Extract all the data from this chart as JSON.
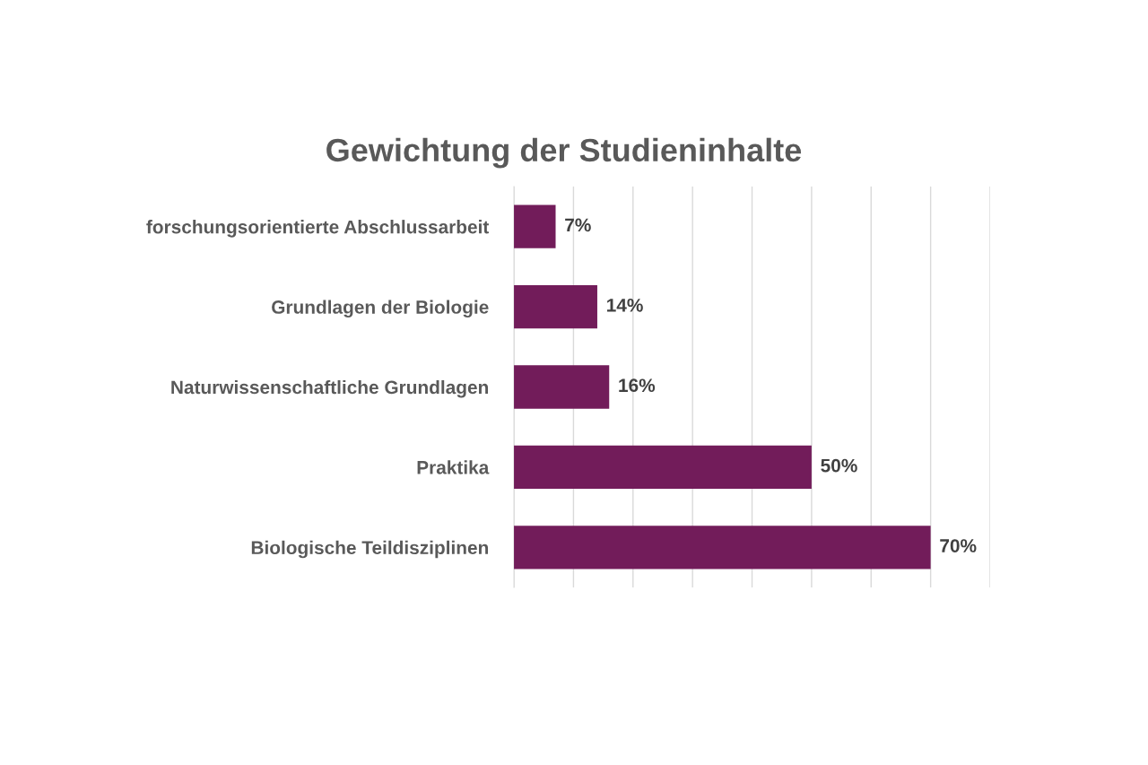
{
  "chart_data": {
    "type": "bar",
    "orientation": "horizontal",
    "title": "Gewichtung der Studieninhalte",
    "categories": [
      "forschungsorientierte Abschlussarbeit",
      "Grundlagen der Biologie",
      "Naturwissenschaftliche Grundlagen",
      "Praktika",
      "Biologische Teildisziplinen"
    ],
    "values": [
      7,
      14,
      16,
      50,
      70
    ],
    "value_labels": [
      "7%",
      "14%",
      "16%",
      "50%",
      "70%"
    ],
    "color": "#721c5a",
    "xlim": [
      0,
      80
    ],
    "xticks": [
      {
        "value": 0,
        "label": null
      },
      {
        "value": 10,
        "label": null
      },
      {
        "value": 20,
        "label": null
      },
      {
        "value": 30,
        "label": null
      },
      {
        "value": 40,
        "label": null
      },
      {
        "value": 50,
        "label": null
      },
      {
        "value": 60,
        "label": null
      },
      {
        "value": 70,
        "label": null
      },
      {
        "value": 80,
        "label": null
      }
    ],
    "grid": "x",
    "tick_labels": "y"
  }
}
